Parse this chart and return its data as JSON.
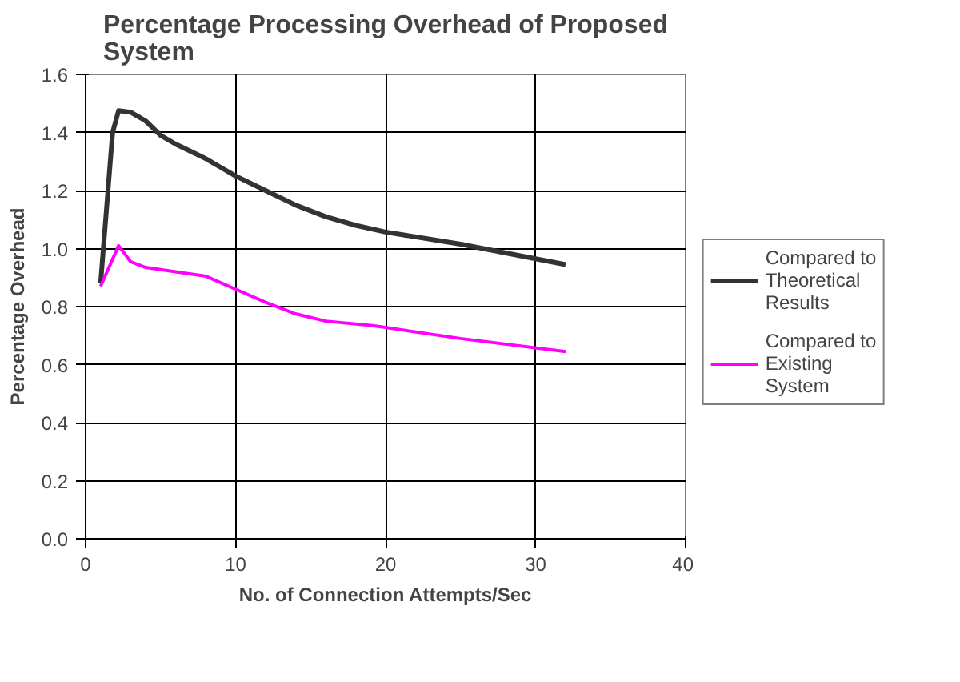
{
  "chart_data": {
    "type": "line",
    "title": "Percentage Processing Overhead of Proposed System",
    "xlabel": "No. of Connection Attempts/Sec",
    "ylabel": "Percentage Overhead",
    "xlim": [
      0,
      40
    ],
    "xticks": [
      0,
      10,
      20,
      30,
      40
    ],
    "ylim": [
      0,
      1.6
    ],
    "yticks": [
      {
        "value": 0,
        "label": "0.0"
      },
      {
        "value": 0.2,
        "label": "0.2"
      },
      {
        "value": 0.4,
        "label": "0.4"
      },
      {
        "value": 0.6,
        "label": "0.6"
      },
      {
        "value": 0.8,
        "label": "0.8"
      },
      {
        "value": 1.0,
        "label": "1.0"
      },
      {
        "value": 1.2,
        "label": "1.2"
      },
      {
        "value": 1.4,
        "label": "1.4"
      },
      {
        "value": 1.6,
        "label": "1.6"
      }
    ],
    "grid": true,
    "legend": "right",
    "marker": "none",
    "line_style": "solid",
    "series": [
      {
        "name": "Compared to Theoretical Results",
        "color": "#333333",
        "x": [
          1,
          1.8,
          2.2,
          3,
          4,
          5,
          6,
          7,
          8,
          9,
          10,
          12,
          14,
          16,
          18,
          20,
          25,
          30,
          32
        ],
        "values": [
          0.88,
          1.4,
          1.475,
          1.47,
          1.44,
          1.39,
          1.36,
          1.335,
          1.31,
          1.28,
          1.25,
          1.2,
          1.15,
          1.11,
          1.08,
          1.057,
          1.015,
          0.965,
          0.945
        ]
      },
      {
        "name": "Compared to Existing System",
        "color": "#ff00ff",
        "x": [
          1,
          2.2,
          3,
          4,
          6,
          8,
          10,
          12,
          14,
          16,
          19,
          20,
          25,
          32
        ],
        "values": [
          0.87,
          1.01,
          0.955,
          0.935,
          0.92,
          0.905,
          0.86,
          0.815,
          0.775,
          0.75,
          0.735,
          0.728,
          0.69,
          0.645
        ]
      }
    ]
  }
}
